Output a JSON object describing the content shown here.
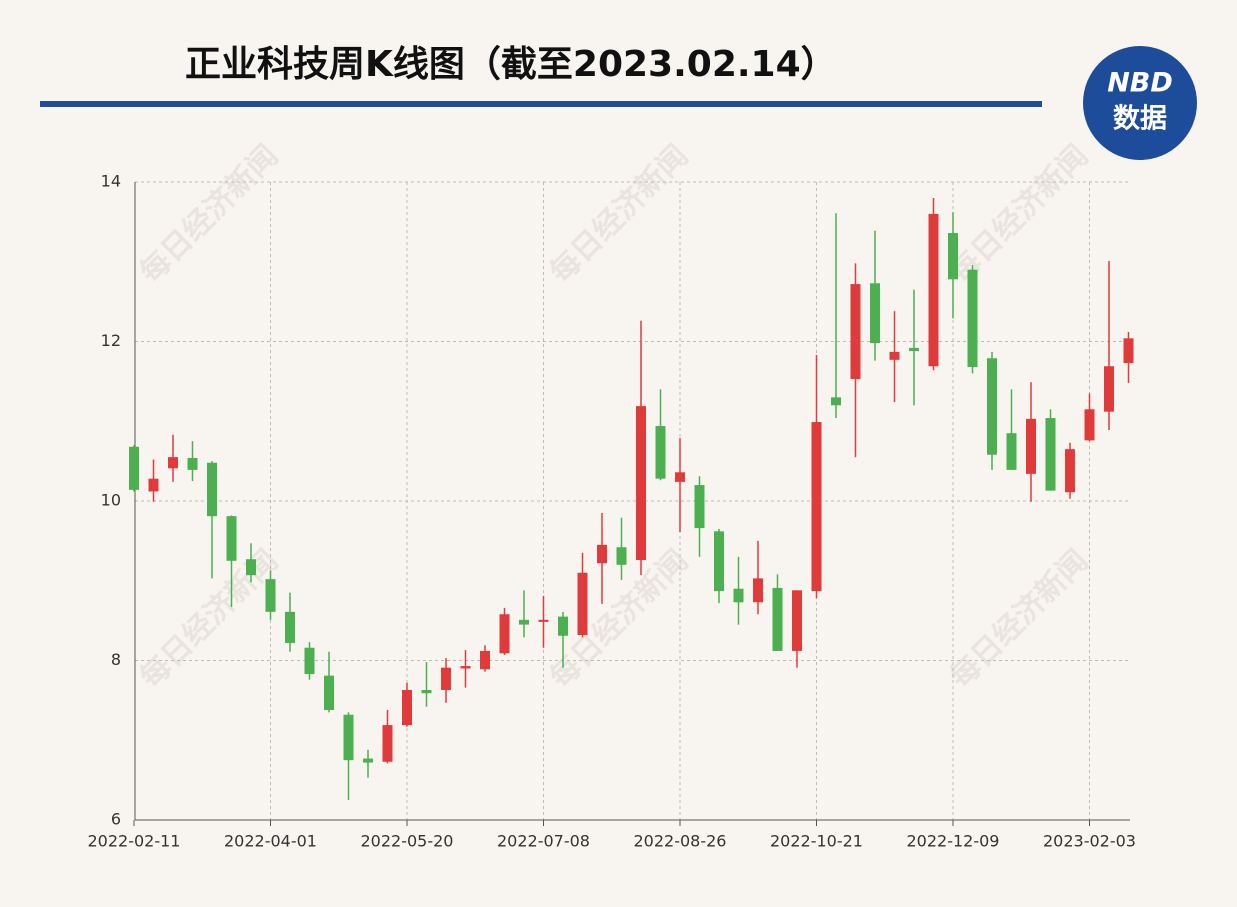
{
  "chart_data": {
    "type": "candlestick",
    "title": "正业科技周K线图（截至2023.02.14）",
    "watermark": "每日经济新闻",
    "logo": [
      "NBD",
      "数据"
    ],
    "categories": [
      "2022-02-11",
      null,
      null,
      null,
      null,
      null,
      null,
      "2022-04-01",
      null,
      null,
      null,
      null,
      null,
      null,
      "2022-05-20",
      null,
      null,
      null,
      null,
      null,
      null,
      "2022-07-08",
      null,
      null,
      null,
      null,
      null,
      null,
      "2022-08-26",
      null,
      null,
      null,
      null,
      null,
      null,
      "2022-10-21",
      null,
      null,
      null,
      null,
      null,
      null,
      "2022-12-09",
      null,
      null,
      null,
      null,
      null,
      null,
      "2023-02-03",
      null,
      null
    ],
    "open": [
      10.68,
      10.12,
      10.41,
      10.54,
      10.48,
      9.81,
      9.27,
      9.02,
      8.61,
      8.16,
      7.81,
      7.32,
      6.77,
      6.73,
      7.19,
      7.63,
      7.63,
      7.9,
      7.89,
      8.09,
      8.51,
      8.49,
      8.55,
      8.32,
      9.22,
      9.42,
      9.26,
      10.94,
      10.24,
      10.2,
      9.62,
      8.9,
      8.73,
      8.91,
      8.12,
      8.87,
      11.3,
      11.53,
      12.73,
      11.77,
      11.92,
      11.69,
      13.36,
      12.9,
      11.79,
      10.85,
      10.34,
      11.04,
      10.11,
      10.76,
      11.12,
      11.73
    ],
    "high": [
      10.7,
      10.52,
      10.83,
      10.75,
      10.5,
      9.82,
      9.47,
      9.13,
      8.85,
      8.23,
      8.11,
      7.35,
      6.88,
      7.38,
      7.72,
      7.98,
      8.03,
      8.13,
      8.19,
      8.66,
      8.88,
      8.81,
      8.61,
      9.35,
      9.85,
      9.79,
      12.26,
      11.4,
      10.79,
      10.31,
      9.65,
      9.3,
      9.5,
      9.08,
      8.88,
      11.83,
      13.61,
      12.98,
      13.39,
      12.38,
      12.65,
      13.8,
      13.62,
      12.96,
      11.87,
      11.4,
      11.49,
      11.15,
      10.73,
      11.35,
      13.01,
      12.12
    ],
    "low": [
      10.12,
      9.99,
      10.24,
      10.25,
      9.03,
      8.67,
      8.98,
      8.51,
      8.11,
      7.76,
      7.35,
      6.25,
      6.53,
      6.71,
      7.17,
      7.42,
      7.47,
      7.66,
      7.86,
      8.07,
      8.29,
      8.16,
      7.91,
      8.29,
      8.71,
      9.01,
      9.07,
      10.26,
      9.61,
      9.3,
      8.72,
      8.45,
      8.58,
      8.12,
      7.91,
      8.78,
      11.04,
      10.55,
      11.76,
      11.24,
      11.2,
      11.64,
      12.29,
      11.6,
      10.39,
      10.39,
      9.99,
      10.13,
      10.03,
      10.75,
      10.89,
      11.48
    ],
    "close": [
      10.14,
      10.28,
      10.55,
      10.39,
      9.81,
      9.25,
      9.07,
      8.61,
      8.22,
      7.83,
      7.38,
      6.75,
      6.72,
      7.19,
      7.63,
      7.59,
      7.91,
      7.93,
      8.12,
      8.58,
      8.45,
      8.51,
      8.31,
      9.1,
      9.45,
      9.2,
      11.19,
      10.28,
      10.36,
      9.66,
      8.87,
      8.73,
      9.03,
      8.12,
      8.88,
      10.99,
      11.2,
      12.72,
      11.98,
      11.87,
      11.88,
      13.6,
      12.78,
      11.68,
      10.58,
      10.39,
      11.03,
      10.13,
      10.65,
      11.15,
      11.69,
      12.04
    ],
    "up_color": "#df3b3b",
    "down_color": "#4caf50",
    "ylim": [
      6,
      14
    ],
    "yticks": [
      6,
      8,
      10,
      12,
      14
    ],
    "grid": true
  }
}
